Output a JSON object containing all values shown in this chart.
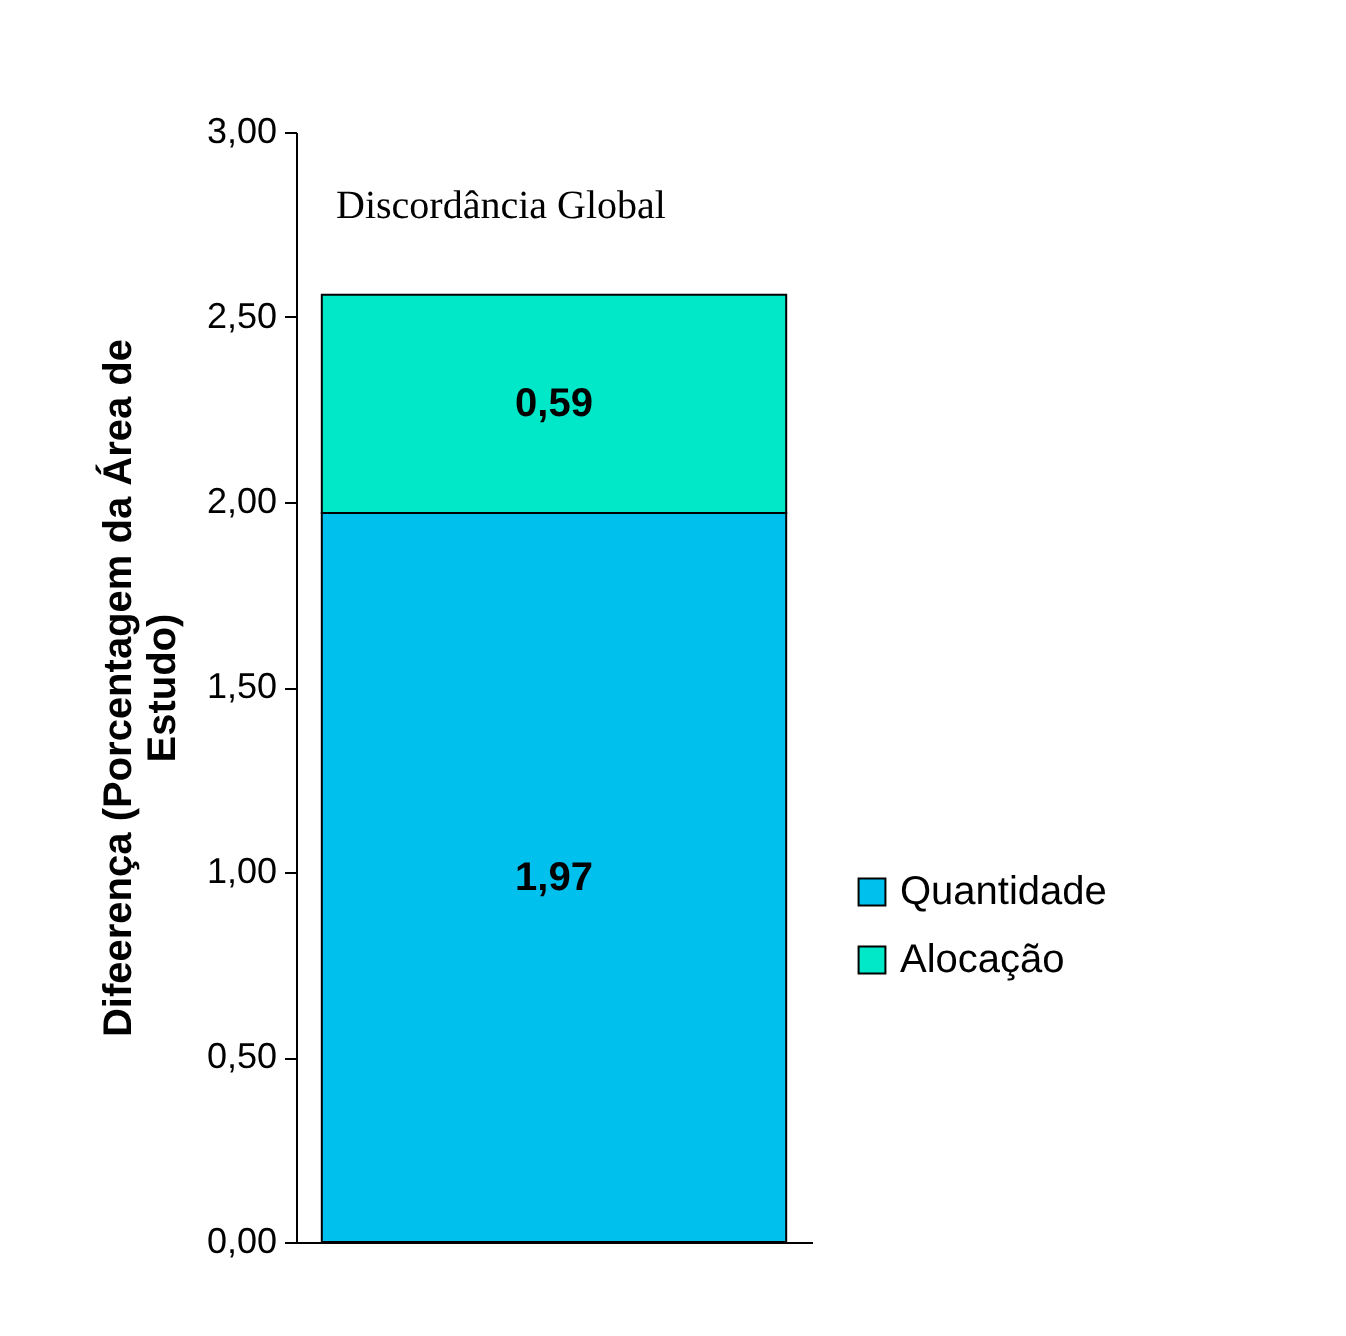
{
  "chart_data": {
    "type": "bar",
    "stacked": true,
    "categories": [
      null
    ],
    "series": [
      {
        "name": "Quantidade",
        "color": "#00c0ee",
        "values": [
          1.97
        ],
        "value_labels": [
          "1,97"
        ]
      },
      {
        "name": "Alocação",
        "color": "#00e8c8",
        "values": [
          0.59
        ],
        "value_labels": [
          "0,59"
        ]
      }
    ],
    "ylabel": "Difeerença (Porcentagem da Área de Estudo)",
    "ylim": [
      0,
      3
    ],
    "yticks": [
      {
        "value": 0,
        "label": "0,00"
      },
      {
        "value": 0.5,
        "label": "0,50"
      },
      {
        "value": 1,
        "label": "1,00"
      },
      {
        "value": 1.5,
        "label": "1,50"
      },
      {
        "value": 2,
        "label": "2,00"
      },
      {
        "value": 2.5,
        "label": "2,50"
      },
      {
        "value": 3,
        "label": "3,00"
      }
    ],
    "annotations": [
      "Discordância Global"
    ],
    "legend": "right",
    "grid": false
  }
}
